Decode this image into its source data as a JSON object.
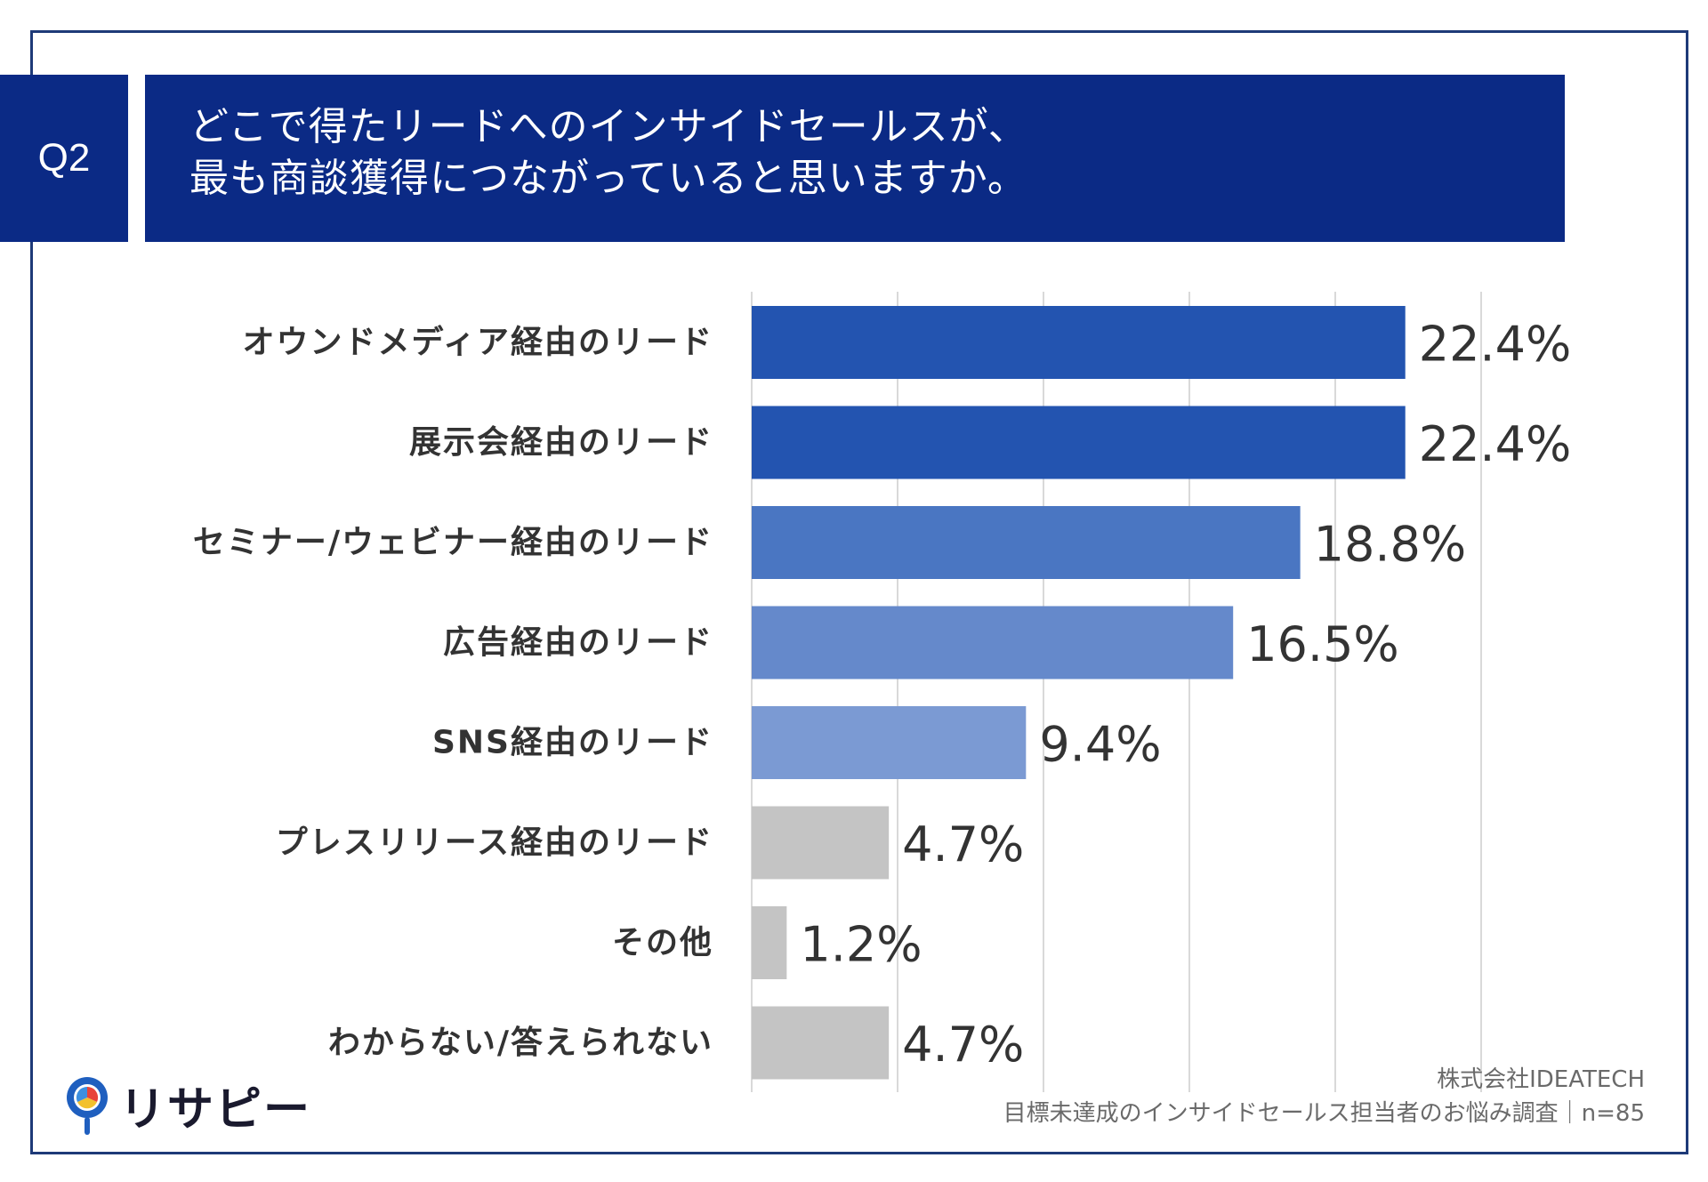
{
  "question": {
    "badge": "Q2",
    "line1": "どこで得たリードへのインサイドセールスが、",
    "line2": "最も商談獲得につながっていると思いますか。"
  },
  "colors": {
    "header_bg": "#0b2a85",
    "frame": "#1e3a78"
  },
  "chart_data": {
    "type": "bar",
    "orientation": "horizontal",
    "title": "どこで得たリードへのインサイドセールスが、最も商談獲得につながっていると思いますか。",
    "xlabel": "",
    "ylabel": "",
    "xlim": [
      0,
      25
    ],
    "grid": true,
    "categories": [
      "オウンドメディア経由のリード",
      "展示会経由のリード",
      "セミナー/ウェビナー経由のリード",
      "広告経由のリード",
      "SNS経由のリード",
      "プレスリリース経由のリード",
      "その他",
      "わからない/答えられない"
    ],
    "values": [
      22.4,
      22.4,
      18.8,
      16.5,
      9.4,
      4.7,
      1.2,
      4.7
    ],
    "labels": [
      "22.4%",
      "22.4%",
      "18.8%",
      "16.5%",
      "9.4%",
      "4.7%",
      "1.2%",
      "4.7%"
    ],
    "bar_colors": [
      "#2354b0",
      "#2354b0",
      "#4a76c2",
      "#6589cb",
      "#7b9ad3",
      "#c4c4c4",
      "#c4c4c4",
      "#c4c4c4"
    ]
  },
  "logo": {
    "name": "リサピー"
  },
  "source": {
    "company": "株式会社IDEATECH",
    "survey": "目標未達成のインサイドセールス担当者のお悩み調査｜n=85"
  }
}
